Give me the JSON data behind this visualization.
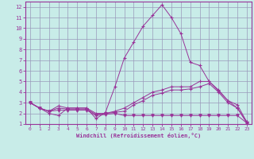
{
  "xlabel": "Windchill (Refroidissement éolien,°C)",
  "bg_color": "#c8ece8",
  "grid_color": "#9999bb",
  "line_color": "#993399",
  "xlim": [
    -0.5,
    23.5
  ],
  "ylim": [
    1,
    12.5
  ],
  "yticks": [
    1,
    2,
    3,
    4,
    5,
    6,
    7,
    8,
    9,
    10,
    11,
    12
  ],
  "xticks": [
    0,
    1,
    2,
    3,
    4,
    5,
    6,
    7,
    8,
    9,
    10,
    11,
    12,
    13,
    14,
    15,
    16,
    17,
    18,
    19,
    20,
    21,
    22,
    23
  ],
  "series": [
    {
      "x": [
        0,
        1,
        2,
        3,
        4,
        5,
        6,
        7,
        8,
        9,
        10,
        11,
        12,
        13,
        14,
        15,
        16,
        17,
        18,
        19,
        20,
        21,
        22,
        23
      ],
      "y": [
        3.0,
        2.5,
        2.0,
        1.8,
        2.5,
        2.5,
        2.5,
        1.5,
        2.1,
        4.5,
        7.2,
        8.7,
        10.2,
        11.2,
        12.2,
        11.0,
        9.5,
        6.8,
        6.5,
        5.0,
        4.1,
        3.2,
        2.5,
        1.2
      ],
      "marker": "+"
    },
    {
      "x": [
        0,
        1,
        2,
        3,
        4,
        5,
        6,
        7,
        8,
        9,
        10,
        11,
        12,
        13,
        14,
        15,
        16,
        17,
        18,
        19,
        20,
        21,
        22,
        23
      ],
      "y": [
        3.0,
        2.5,
        2.2,
        2.7,
        2.5,
        2.5,
        2.5,
        2.0,
        2.0,
        2.2,
        2.5,
        3.0,
        3.5,
        4.0,
        4.2,
        4.5,
        4.5,
        4.5,
        5.0,
        5.0,
        4.2,
        3.2,
        2.8,
        1.2
      ],
      "marker": "+"
    },
    {
      "x": [
        0,
        1,
        2,
        3,
        4,
        5,
        6,
        7,
        8,
        9,
        10,
        11,
        12,
        13,
        14,
        15,
        16,
        17,
        18,
        19,
        20,
        21,
        22,
        23
      ],
      "y": [
        3.0,
        2.5,
        2.2,
        2.5,
        2.4,
        2.4,
        2.4,
        1.9,
        2.0,
        2.1,
        2.2,
        2.8,
        3.2,
        3.7,
        3.9,
        4.2,
        4.2,
        4.3,
        4.5,
        4.8,
        4.0,
        3.0,
        2.5,
        1.1
      ],
      "marker": "+"
    },
    {
      "x": [
        0,
        1,
        2,
        3,
        4,
        5,
        6,
        7,
        8,
        9,
        10,
        11,
        12,
        13,
        14,
        15,
        16,
        17,
        18,
        19,
        20,
        21,
        22,
        23
      ],
      "y": [
        3.0,
        2.5,
        2.2,
        2.3,
        2.3,
        2.3,
        2.3,
        1.8,
        1.9,
        2.0,
        1.8,
        1.8,
        1.8,
        1.8,
        1.8,
        1.8,
        1.8,
        1.8,
        1.8,
        1.8,
        1.8,
        1.8,
        1.8,
        1.1
      ],
      "marker": "v"
    }
  ]
}
